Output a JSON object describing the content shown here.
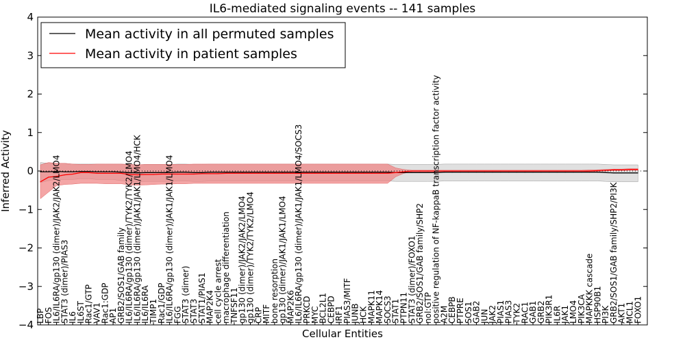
{
  "chart_data": {
    "type": "line",
    "title": "IL6-mediated signaling events -- 141 samples",
    "xlabel": "Cellular Entities",
    "ylabel": "Inferred Activity",
    "ylim": [
      -4,
      4
    ],
    "yticks": [
      -4,
      -3,
      -2,
      -1,
      0,
      1,
      2,
      3,
      4
    ],
    "grid": false,
    "legend_position": "top-left",
    "colors": {
      "permuted": "#000000",
      "patient": "#ff0000",
      "patient_band": "#f08080",
      "permuted_band": "#cccccc",
      "zero_line": "#000000"
    },
    "categories": [
      "LBP",
      "FOS",
      "IL6/IL6RA/gp130 (dimer)/JAK2/JAK2/LMO4",
      "STAT3 (dimer)/PIAS3",
      "IL6",
      "IL6ST",
      "Rac1/GTP",
      "VAV1",
      "Rac1:GDP",
      "AP1",
      "GRB2/SOS1/GAB family",
      "IL6/IL6RA/gp130 (dimer)/TYK2/TYK2/LMO4",
      "IL6/IL6RA/gp130 (dimer)/JAK1/JAK1/LMO4/HCK",
      "IL6/IL6RA",
      "TIMP1",
      "Rac1/GDP",
      "IL6/IL6RA/gp130 (dimer)/JAK1/JAK1/LMO4",
      "FGG",
      "STAT3 (dimer)",
      "STAT3",
      "STAT1/PIAS1",
      "MAP2K4",
      "cell cycle arrest",
      "macrophage differentiation",
      "TNFSF11",
      "gp130 (dimer)/JAK2/JAK2/LMO4",
      "gp130 (dimer)/TYK2/TYK2/LMO4",
      "CRP",
      "MITF",
      "bone resorption",
      "gp130 (dimer)/JAK1/JAK1/LMO4",
      "MAP2K6",
      "IL6/IL6RA/gp130 (dimer)/JAK1/JAK1/LMO4/SOCS3",
      "PRKCD",
      "MYC",
      "BCL2L1",
      "CEBPD",
      "IRF1",
      "PIAS3/MITF",
      "JUNB",
      "HCK",
      "MAPK11",
      "MAPK14",
      "SOCS3",
      "STAT1",
      "PTPN11",
      "STAT3 (dimer)/FOXO1",
      "GRB2/SOS1/GAB family/SHP2",
      "nol:GTP",
      "positive regulation of NF-kappaB transcription factor activity",
      "A2M",
      "CEBPB",
      "PTPRE",
      "SOS1",
      "GAB2",
      "JUN",
      "JAK2",
      "PIAS1",
      "PIAS3",
      "TYK2",
      "RAC1",
      "GAB1",
      "GRB2",
      "PIK3R1",
      "IL6R",
      "JAK1",
      "LMO4",
      "PIK3CA",
      "MAPKKK cascade",
      "HSP90B1",
      "PI3K",
      "GRB2/SOS1/GAB family/SHP2/PI3K",
      "AKT1",
      "MCL1",
      "FOXO1"
    ],
    "series": [
      {
        "name": "Mean activity in all permuted samples",
        "values": [
          -0.02,
          -0.02,
          -0.01,
          -0.02,
          -0.02,
          -0.01,
          -0.01,
          -0.02,
          -0.02,
          -0.02,
          -0.03,
          -0.04,
          -0.05,
          -0.04,
          -0.04,
          -0.04,
          -0.04,
          -0.03,
          -0.03,
          -0.04,
          -0.04,
          -0.03,
          -0.03,
          -0.03,
          -0.03,
          -0.03,
          -0.03,
          -0.03,
          -0.03,
          -0.03,
          -0.03,
          -0.03,
          -0.03,
          -0.03,
          -0.03,
          -0.03,
          -0.03,
          -0.03,
          -0.03,
          -0.03,
          -0.03,
          -0.03,
          -0.03,
          -0.03,
          -0.04,
          -0.04,
          -0.04,
          -0.04,
          -0.04,
          -0.04,
          -0.03,
          -0.03,
          -0.03,
          -0.03,
          -0.03,
          -0.03,
          -0.03,
          -0.03,
          -0.03,
          -0.03,
          -0.03,
          -0.03,
          -0.03,
          -0.03,
          -0.03,
          -0.03,
          -0.03,
          -0.03,
          -0.03,
          -0.03,
          -0.04,
          -0.05,
          -0.05,
          -0.05,
          -0.05
        ],
        "lower": [
          -0.3,
          -0.25,
          -0.22,
          -0.22,
          -0.22,
          -0.2,
          -0.2,
          -0.22,
          -0.22,
          -0.22,
          -0.25,
          -0.27,
          -0.28,
          -0.27,
          -0.27,
          -0.27,
          -0.27,
          -0.26,
          -0.26,
          -0.27,
          -0.27,
          -0.26,
          -0.26,
          -0.26,
          -0.26,
          -0.26,
          -0.26,
          -0.26,
          -0.26,
          -0.26,
          -0.26,
          -0.26,
          -0.26,
          -0.26,
          -0.26,
          -0.26,
          -0.26,
          -0.26,
          -0.26,
          -0.26,
          -0.26,
          -0.26,
          -0.26,
          -0.26,
          -0.27,
          -0.27,
          -0.27,
          -0.27,
          -0.27,
          -0.27,
          -0.26,
          -0.26,
          -0.26,
          -0.26,
          -0.26,
          -0.26,
          -0.26,
          -0.26,
          -0.26,
          -0.26,
          -0.26,
          -0.26,
          -0.26,
          -0.26,
          -0.26,
          -0.26,
          -0.26,
          -0.26,
          -0.26,
          -0.26,
          -0.27,
          -0.28,
          -0.28,
          -0.28,
          -0.28
        ],
        "upper": [
          0.22,
          0.2,
          0.2,
          0.2,
          0.18,
          0.18,
          0.18,
          0.18,
          0.18,
          0.18,
          0.18,
          0.17,
          0.16,
          0.17,
          0.17,
          0.17,
          0.17,
          0.18,
          0.18,
          0.17,
          0.17,
          0.18,
          0.18,
          0.18,
          0.18,
          0.18,
          0.18,
          0.18,
          0.18,
          0.18,
          0.18,
          0.18,
          0.18,
          0.18,
          0.18,
          0.18,
          0.18,
          0.18,
          0.18,
          0.18,
          0.18,
          0.18,
          0.18,
          0.18,
          0.17,
          0.17,
          0.17,
          0.17,
          0.17,
          0.17,
          0.18,
          0.18,
          0.18,
          0.18,
          0.18,
          0.18,
          0.18,
          0.18,
          0.18,
          0.18,
          0.18,
          0.18,
          0.18,
          0.18,
          0.18,
          0.18,
          0.18,
          0.18,
          0.18,
          0.18,
          0.17,
          0.16,
          0.16,
          0.16,
          0.16
        ]
      },
      {
        "name": "Mean activity in patient samples",
        "values": [
          -0.28,
          -0.16,
          -0.14,
          -0.1,
          -0.08,
          -0.04,
          -0.04,
          -0.06,
          -0.06,
          -0.06,
          -0.06,
          -0.09,
          -0.1,
          -0.09,
          -0.09,
          -0.08,
          -0.08,
          -0.08,
          -0.08,
          -0.08,
          -0.07,
          -0.07,
          -0.07,
          -0.06,
          -0.06,
          -0.06,
          -0.06,
          -0.06,
          -0.06,
          -0.06,
          -0.06,
          -0.06,
          -0.06,
          -0.06,
          -0.06,
          -0.06,
          -0.06,
          -0.06,
          -0.06,
          -0.06,
          -0.06,
          -0.06,
          -0.06,
          -0.06,
          -0.04,
          -0.02,
          0.0,
          0.0,
          0.0,
          0.0,
          0.0,
          0.0,
          0.0,
          0.0,
          0.0,
          0.0,
          0.0,
          0.0,
          0.0,
          0.0,
          0.0,
          0.0,
          0.0,
          0.0,
          0.0,
          0.0,
          0.0,
          0.0,
          0.0,
          0.01,
          0.02,
          0.03,
          0.03,
          0.04,
          0.04
        ],
        "lower": [
          -0.72,
          -0.55,
          -0.38,
          -0.35,
          -0.34,
          -0.32,
          -0.32,
          -0.32,
          -0.33,
          -0.33,
          -0.33,
          -0.36,
          -0.37,
          -0.36,
          -0.35,
          -0.34,
          -0.34,
          -0.33,
          -0.33,
          -0.32,
          -0.32,
          -0.32,
          -0.32,
          -0.32,
          -0.32,
          -0.32,
          -0.32,
          -0.32,
          -0.32,
          -0.32,
          -0.32,
          -0.32,
          -0.32,
          -0.32,
          -0.32,
          -0.32,
          -0.32,
          -0.32,
          -0.32,
          -0.32,
          -0.32,
          -0.32,
          -0.32,
          -0.32,
          -0.15,
          -0.06,
          -0.02,
          -0.02,
          -0.02,
          -0.02,
          -0.02,
          -0.02,
          -0.02,
          -0.02,
          -0.02,
          -0.02,
          -0.02,
          -0.02,
          -0.02,
          -0.02,
          -0.02,
          -0.02,
          -0.02,
          -0.02,
          -0.02,
          -0.02,
          -0.02,
          -0.02,
          -0.01,
          -0.01,
          0.0,
          0.01,
          0.01,
          0.02,
          0.02
        ],
        "upper": [
          0.16,
          0.22,
          0.2,
          0.2,
          0.18,
          0.17,
          0.17,
          0.18,
          0.18,
          0.18,
          0.18,
          0.17,
          0.16,
          0.17,
          0.17,
          0.17,
          0.17,
          0.17,
          0.17,
          0.18,
          0.18,
          0.18,
          0.18,
          0.18,
          0.18,
          0.18,
          0.18,
          0.18,
          0.18,
          0.18,
          0.18,
          0.18,
          0.18,
          0.18,
          0.18,
          0.18,
          0.18,
          0.18,
          0.18,
          0.18,
          0.18,
          0.18,
          0.18,
          0.18,
          0.08,
          0.04,
          0.02,
          0.02,
          0.02,
          0.02,
          0.02,
          0.02,
          0.02,
          0.02,
          0.02,
          0.02,
          0.02,
          0.02,
          0.02,
          0.02,
          0.02,
          0.02,
          0.02,
          0.02,
          0.02,
          0.02,
          0.02,
          0.02,
          0.03,
          0.03,
          0.04,
          0.05,
          0.05,
          0.06,
          0.06
        ]
      }
    ]
  }
}
